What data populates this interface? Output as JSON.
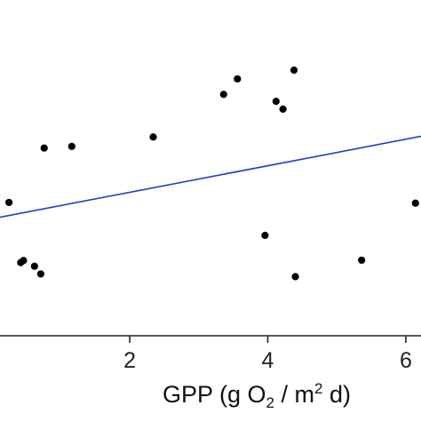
{
  "chart_data": {
    "type": "scatter",
    "title": "",
    "xlabel": {
      "prefix": "GPP (g O",
      "sub": "2",
      "middle": " / m",
      "sup": "2",
      "suffix": " d)"
    },
    "ylabel": "",
    "x_ticks": [
      {
        "value": 2,
        "label": "2"
      },
      {
        "value": 4,
        "label": "4"
      },
      {
        "value": 6,
        "label": "6"
      }
    ],
    "xlim": [
      0.12,
      6.22
    ],
    "ylim": [
      0,
      1
    ],
    "grid": false,
    "series": [
      {
        "points": [
          {
            "x": 0.25,
            "y": 0.397
          },
          {
            "x": 0.42,
            "y": 0.218
          },
          {
            "x": 0.46,
            "y": 0.224
          },
          {
            "x": 0.62,
            "y": 0.207
          },
          {
            "x": 0.71,
            "y": 0.184
          },
          {
            "x": 0.76,
            "y": 0.559
          },
          {
            "x": 1.16,
            "y": 0.564
          },
          {
            "x": 2.34,
            "y": 0.592
          },
          {
            "x": 3.36,
            "y": 0.719
          },
          {
            "x": 3.56,
            "y": 0.765
          },
          {
            "x": 3.96,
            "y": 0.299
          },
          {
            "x": 4.12,
            "y": 0.698
          },
          {
            "x": 4.22,
            "y": 0.675
          },
          {
            "x": 4.38,
            "y": 0.791
          },
          {
            "x": 4.4,
            "y": 0.176
          },
          {
            "x": 5.36,
            "y": 0.225
          },
          {
            "x": 6.14,
            "y": 0.395
          }
        ]
      }
    ],
    "trendline": {
      "x": [
        0.12,
        6.22
      ],
      "y": [
        0.353,
        0.594
      ]
    },
    "colors": {
      "points": "#000000",
      "trendline": "#1f3fbf",
      "axis": "#222222"
    }
  }
}
